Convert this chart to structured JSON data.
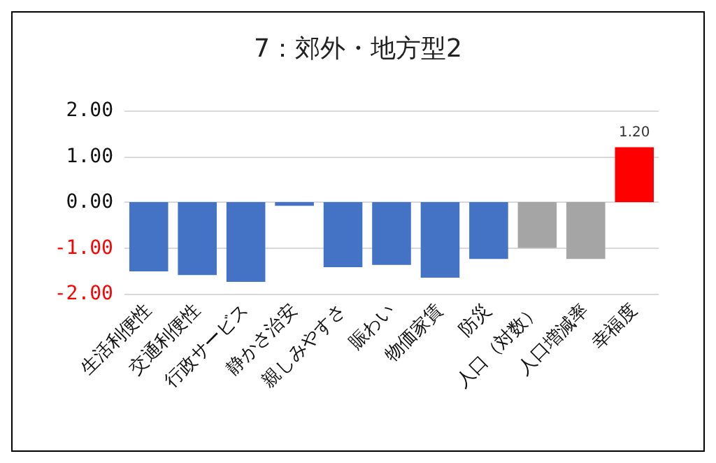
{
  "chart_data": {
    "type": "bar",
    "title": "7：郊外・地方型2",
    "categories": [
      "生活利便性",
      "交通利便性",
      "行政サービス",
      "静かさ治安",
      "親しみやすさ",
      "賑わい",
      "物価家賃",
      "防災",
      "人口（対数）",
      "人口増減率",
      "幸福度"
    ],
    "values": [
      -1.51,
      -1.59,
      -1.74,
      -0.08,
      -1.42,
      -1.37,
      -1.65,
      -1.24,
      -1.0,
      -1.24,
      1.2
    ],
    "colors": [
      "#4472c4",
      "#4472c4",
      "#4472c4",
      "#4472c4",
      "#4472c4",
      "#4472c4",
      "#4472c4",
      "#4472c4",
      "#a5a5a5",
      "#a5a5a5",
      "#ff0000"
    ],
    "value_labels": [
      null,
      null,
      null,
      null,
      null,
      null,
      null,
      null,
      null,
      null,
      "1.20"
    ],
    "ylim": [
      -2,
      2
    ],
    "yticks": [
      {
        "value": -2,
        "label": "-2.00"
      },
      {
        "value": -1,
        "label": "-1.00"
      },
      {
        "value": 0,
        "label": "0.00"
      },
      {
        "value": 1,
        "label": "1.00"
      },
      {
        "value": 2,
        "label": "2.00"
      }
    ],
    "grid": "y"
  }
}
